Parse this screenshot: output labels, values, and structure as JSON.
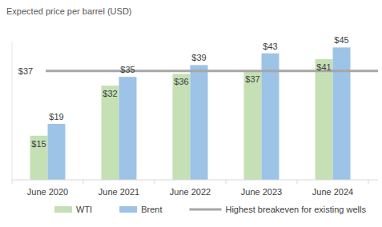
{
  "chart_data": {
    "type": "bar",
    "title": "Expected price per barrel (USD)",
    "categories": [
      "June 2020",
      "June 2021",
      "June 2022",
      "June 2023",
      "June 2024"
    ],
    "series": [
      {
        "name": "WTI",
        "color": "#c5e0b4",
        "values": [
          15,
          32,
          36,
          37,
          41
        ],
        "value_labels": [
          "$15",
          "$32",
          "$36",
          "$37",
          "$41"
        ]
      },
      {
        "name": "Brent",
        "color": "#9dc3e6",
        "values": [
          19,
          35,
          39,
          43,
          45
        ],
        "value_labels": [
          "$19",
          "$35",
          "$39",
          "$43",
          "$45"
        ]
      }
    ],
    "reference_lines": [
      {
        "name": "Highest breakeven for existing wells",
        "color": "#a6a6a6",
        "value": 37,
        "value_label": "$37"
      }
    ],
    "ylim": [
      0,
      47
    ],
    "grid": false,
    "data_labels": true,
    "tick_labels": "x",
    "legend": "bottom"
  }
}
